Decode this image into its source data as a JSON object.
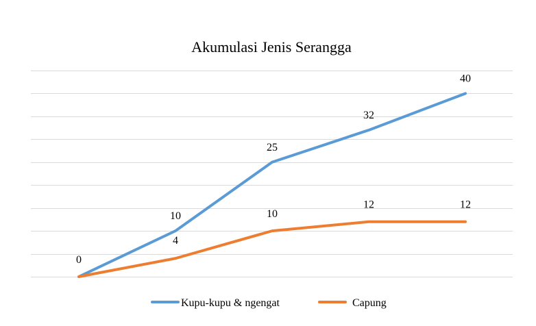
{
  "chart_data": {
    "type": "line",
    "title": "Akumulasi Jenis Serangga",
    "xlabel": "",
    "ylabel": "",
    "categories": [
      "",
      "",
      "",
      "",
      ""
    ],
    "ylim": [
      0,
      45
    ],
    "grid": true,
    "legend_position": "bottom",
    "series": [
      {
        "name": "Kupu-kupu & ngengat",
        "color": "#5B9BD5",
        "values": [
          0,
          10,
          25,
          32,
          40
        ],
        "labels": [
          "0",
          "10",
          "25",
          "32",
          "40"
        ]
      },
      {
        "name": "Capung",
        "color": "#ED7D31",
        "values": [
          0,
          4,
          10,
          12,
          12
        ],
        "labels": [
          "",
          "4",
          "10",
          "12",
          "12"
        ]
      }
    ]
  }
}
